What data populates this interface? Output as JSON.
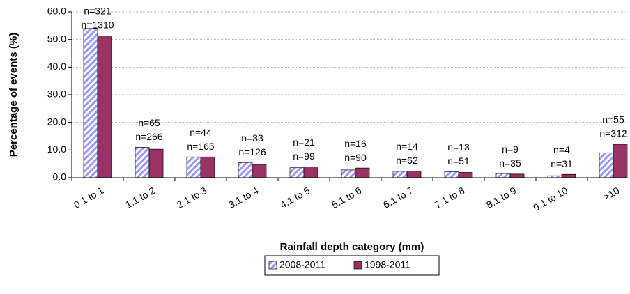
{
  "chart_data": {
    "type": "bar",
    "xlabel": "Rainfall depth category (mm)",
    "ylabel": "Percentage of events (%)",
    "categories": [
      "0.1 to 1",
      "1.1 to 2",
      "2.1 to 3",
      "3.1 to 4",
      "4.1 to 5",
      "5.1 to 6",
      "6.1 to 7",
      "7.1 to 8",
      "8.1 to 9",
      "9.1 to 10",
      ">10"
    ],
    "series": [
      {
        "name": "2008-2011",
        "color": "#9999ff",
        "label_color": "#0000cc",
        "values": [
          54.0,
          11.0,
          7.5,
          5.5,
          3.6,
          2.8,
          2.3,
          2.2,
          1.5,
          0.7,
          9.0
        ],
        "n_labels": [
          "n=321",
          "n=65",
          "n=44",
          "n=33",
          "n=21",
          "n=16",
          "n=14",
          "n=13",
          "n=9",
          "n=4",
          "n=55"
        ]
      },
      {
        "name": "1998-2011",
        "color": "#993366",
        "label_color": "#993366",
        "values": [
          51.0,
          10.3,
          7.5,
          4.8,
          3.9,
          3.5,
          2.4,
          1.9,
          1.3,
          1.2,
          12.1
        ],
        "n_labels": [
          "n=1310",
          "n=266",
          "n=165",
          "n=126",
          "n=99",
          "n=90",
          "n=62",
          "n=51",
          "n=35",
          "n=31",
          "n=312"
        ]
      }
    ],
    "ylim": [
      0,
      60
    ],
    "yticks": [
      {
        "value": 0,
        "label": "0.0"
      },
      {
        "value": 10,
        "label": "10.0"
      },
      {
        "value": 20,
        "label": "20.0"
      },
      {
        "value": 30,
        "label": "30.0"
      },
      {
        "value": 40,
        "label": "40.0"
      },
      {
        "value": 50,
        "label": "50.0"
      },
      {
        "value": 60,
        "label": "60.0"
      }
    ],
    "grid": true,
    "legend": "bottom"
  }
}
